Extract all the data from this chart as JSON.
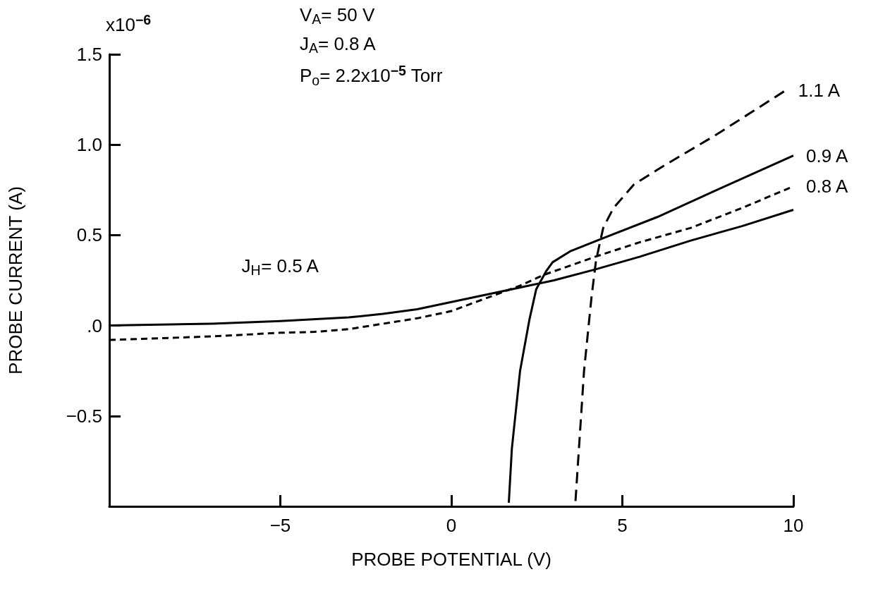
{
  "chart_data": {
    "type": "line",
    "xlabel": "PROBE POTENTIAL (V)",
    "ylabel": "PROBE CURRENT (A)",
    "xlim": [
      -10,
      10
    ],
    "xticks": [
      {
        "value": -5,
        "label": "−5"
      },
      0,
      5,
      10
    ],
    "ylim": [
      -1,
      1.5
    ],
    "yticks": [
      {
        "value": -1,
        "label": null
      },
      {
        "value": -0.5,
        "label": "−0.5"
      },
      {
        "value": 0,
        "label": ".0"
      },
      {
        "value": 0.5,
        "label": "0.5"
      },
      {
        "value": 1,
        "label": "1.0"
      },
      {
        "value": 1.5,
        "label": "1.5"
      }
    ],
    "grid": false,
    "legend": false,
    "marker": "none",
    "annotations": [
      "x10$^{−6}$",
      "V$_{A}$= 50 V",
      "J$_{A}$= 0.8 A",
      "P$_{o}$= 2.2x10$^{−5}$ Torr"
    ],
    "series": [
      {
        "name": "J$_{H}$= 0.5 A",
        "color": "#000000",
        "line_style": "solid",
        "x": [
          -10,
          -7,
          -5,
          -3,
          -2,
          -1,
          0,
          1,
          2,
          3,
          4.2,
          5.5,
          7,
          8.5,
          10
        ],
        "values": [
          0.0,
          0.01,
          0.025,
          0.045,
          0.065,
          0.09,
          0.13,
          0.17,
          0.21,
          0.25,
          0.31,
          0.38,
          0.47,
          0.55,
          0.64
        ]
      },
      {
        "name": "0.8 A",
        "color": "#000000",
        "line_style": "dotted",
        "x": [
          -10,
          -7,
          -5,
          -4,
          -3,
          -2,
          -1,
          0,
          1,
          2,
          2.7,
          4.2,
          5.5,
          7,
          8.5,
          10
        ],
        "values": [
          -0.08,
          -0.06,
          -0.04,
          -0.035,
          -0.02,
          0.01,
          0.04,
          0.08,
          0.15,
          0.22,
          0.28,
          0.38,
          0.46,
          0.54,
          0.65,
          0.77
        ]
      },
      {
        "name": "0.9 A",
        "color": "#000000",
        "line_style": "solid",
        "x": [
          1.68,
          1.77,
          2.01,
          2.28,
          2.48,
          2.77,
          2.96,
          3.47,
          4.39,
          6.02,
          8,
          10
        ],
        "values": [
          -0.98,
          -0.68,
          -0.25,
          0.03,
          0.2,
          0.3,
          0.35,
          0.41,
          0.48,
          0.6,
          0.77,
          0.94
        ]
      },
      {
        "name": "1.1 A",
        "color": "#000000",
        "line_style": "dashed",
        "x": [
          3.63,
          3.88,
          4.1,
          4.23,
          4.44,
          4.74,
          5.34,
          6.18,
          7.7,
          9.77
        ],
        "values": [
          -0.97,
          -0.25,
          0.16,
          0.36,
          0.54,
          0.65,
          0.78,
          0.88,
          1.05,
          1.3
        ]
      }
    ]
  }
}
